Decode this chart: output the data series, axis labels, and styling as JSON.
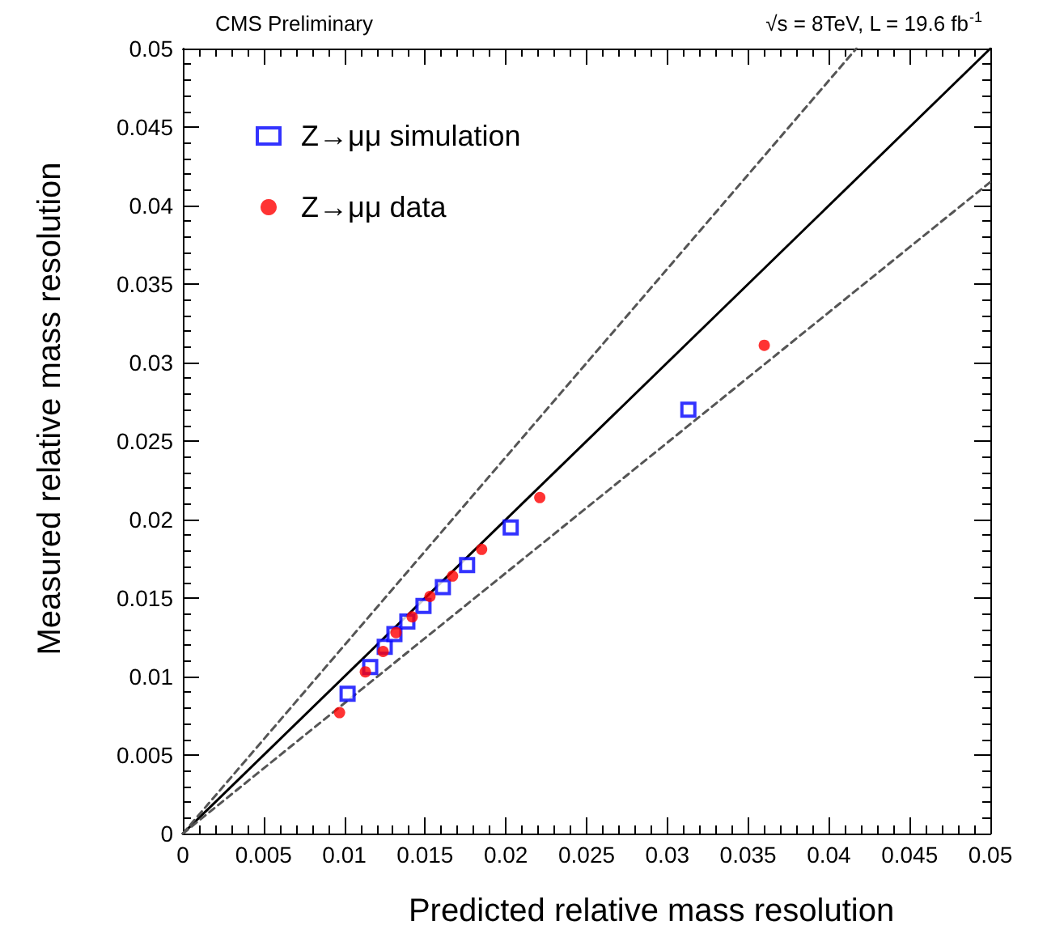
{
  "chart_data": {
    "type": "scatter",
    "title": "CMS Preliminary",
    "xlabel": "Predicted relative mass resolution",
    "ylabel": "Measured relative mass resolution",
    "annotations": [
      "√s = 8TeV, L = 19.6 fb$^{-1}$"
    ],
    "series": [
      {
        "name": "Z→μμ simulation",
        "color": "#0000ff",
        "marker": "square",
        "x": [
          0.0102,
          0.0116,
          0.0125,
          0.0131,
          0.0139,
          0.0149,
          0.0161,
          0.0176,
          0.0203,
          0.0313
        ],
        "values": [
          0.0089,
          0.0106,
          0.0119,
          0.0127,
          0.0135,
          0.0145,
          0.0157,
          0.0171,
          0.0195,
          0.027
        ]
      },
      {
        "name": "Z→μμ data",
        "color": "#ff0000",
        "marker": "circle",
        "x": [
          0.0097,
          0.0113,
          0.0124,
          0.0132,
          0.0142,
          0.0153,
          0.0167,
          0.0185,
          0.0221,
          0.036
        ],
        "values": [
          0.0077,
          0.0103,
          0.0116,
          0.0128,
          0.0138,
          0.0151,
          0.0164,
          0.0181,
          0.0214,
          0.0311
        ]
      },
      {
        "type": "line",
        "color": "#000000",
        "marker": "none",
        "line_style": "solid",
        "x": [
          0,
          0.05
        ],
        "values": [
          0,
          0.05
        ]
      },
      {
        "type": "line",
        "color": "#555555",
        "marker": "none",
        "line_style": "dashed",
        "x": [
          0,
          0.0417
        ],
        "values": [
          0,
          0.05
        ]
      },
      {
        "type": "line",
        "color": "#555555",
        "marker": "none",
        "line_style": "dashed",
        "x": [
          0,
          0.05
        ],
        "values": [
          0,
          0.0415
        ]
      }
    ],
    "xlim": [
      0,
      0.05
    ],
    "ylim": [
      0,
      0.05
    ],
    "xticks": [
      0,
      0.005,
      0.01,
      0.015,
      0.02,
      0.025,
      0.03,
      0.035,
      0.04,
      0.045,
      0.05
    ],
    "yticks": [
      0,
      0.005,
      0.01,
      0.015,
      0.02,
      0.025,
      0.03,
      0.035,
      0.04,
      0.045,
      0.05
    ],
    "grid": false,
    "legend": "top left"
  }
}
